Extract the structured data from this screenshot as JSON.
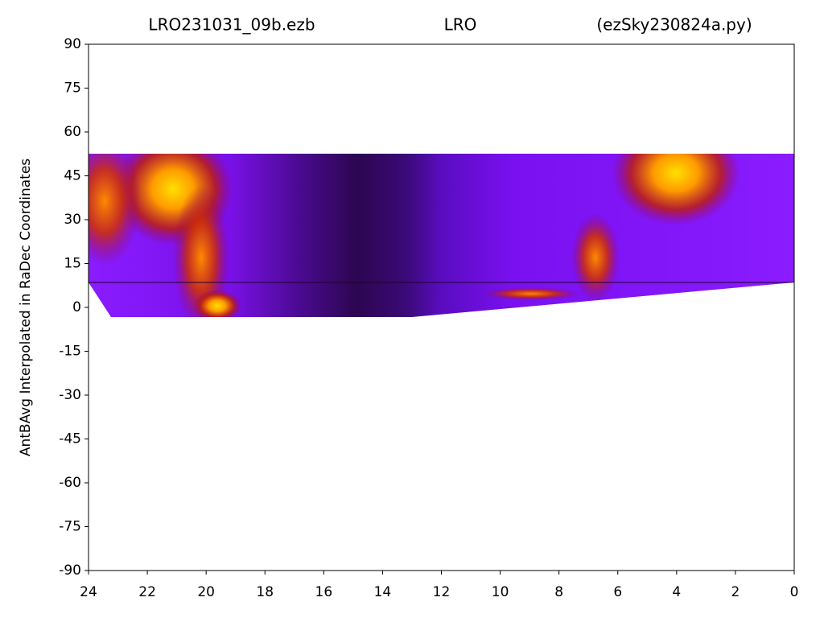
{
  "chart_data": {
    "type": "heatmap",
    "titles": [
      "LRO231031_09b.ezb",
      "LRO",
      "(ezSky230824a.py)"
    ],
    "y_label": "AntBAvg Interpolated in RaDec Coordinates",
    "xlim": [
      24,
      0
    ],
    "xticks": [
      24,
      22,
      20,
      18,
      16,
      14,
      12,
      10,
      8,
      6,
      4,
      2,
      0
    ],
    "ylim": [
      -90,
      90
    ],
    "yticks": [
      90,
      75,
      60,
      45,
      30,
      15,
      0,
      -15,
      -30,
      -45,
      -60,
      -75,
      -90
    ]
  }
}
